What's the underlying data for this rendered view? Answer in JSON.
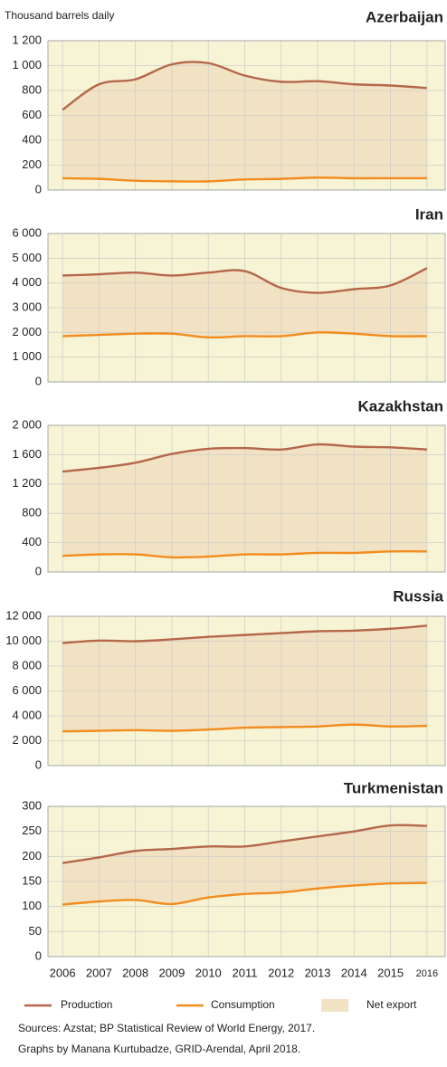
{
  "ylabel": "Thousand barrels daily",
  "legend": [
    {
      "name": "Production",
      "color": "#b5674a"
    },
    {
      "name": "Consumption",
      "color": "#f28c1e"
    },
    {
      "name": "Net export",
      "color": "#f2e2c4"
    }
  ],
  "sources": [
    "Sources: Azstat; BP Statistical Review of World Energy, 2017.",
    "Graphs by Manana Kurtubadze, GRID-Arendal, April 2018."
  ],
  "chart_data": [
    {
      "type": "line",
      "title": "Azerbaijan",
      "x": [
        2006,
        2007,
        2008,
        2009,
        2010,
        2011,
        2012,
        2013,
        2014,
        2015,
        2016
      ],
      "xlim": [
        2005.6,
        2016.5
      ],
      "ylim": [
        0,
        1200
      ],
      "yticks": [
        0,
        200,
        400,
        600,
        800,
        {
          "value": 1000,
          "label": "1 000"
        },
        {
          "value": 1200,
          "label": "1 200"
        }
      ],
      "grid": true,
      "series": [
        {
          "color": "#b5674a",
          "values": [
            645,
            850,
            890,
            1010,
            1020,
            920,
            870,
            875,
            850,
            840,
            820
          ]
        },
        {
          "color": "#f28c1e",
          "values": [
            95,
            90,
            75,
            70,
            70,
            85,
            90,
            100,
            95,
            95,
            95
          ]
        }
      ]
    },
    {
      "type": "line",
      "title": "Iran",
      "x": [
        2006,
        2007,
        2008,
        2009,
        2010,
        2011,
        2012,
        2013,
        2014,
        2015,
        2016
      ],
      "xlim": [
        2005.6,
        2016.5
      ],
      "ylim": [
        0,
        6000
      ],
      "yticks": [
        0,
        {
          "value": 1000,
          "label": "1 000"
        },
        {
          "value": 2000,
          "label": "2 000"
        },
        {
          "value": 3000,
          "label": "3 000"
        },
        {
          "value": 4000,
          "label": "4 000"
        },
        {
          "value": 5000,
          "label": "5 000"
        },
        {
          "value": 6000,
          "label": "6 000"
        }
      ],
      "grid": true,
      "series": [
        {
          "color": "#b5674a",
          "values": [
            4300,
            4350,
            4420,
            4300,
            4420,
            4480,
            3800,
            3600,
            3750,
            3900,
            4600
          ]
        },
        {
          "color": "#f28c1e",
          "values": [
            1850,
            1900,
            1950,
            1950,
            1800,
            1850,
            1850,
            2000,
            1950,
            1850,
            1850
          ]
        }
      ]
    },
    {
      "type": "line",
      "title": "Kazakhstan",
      "x": [
        2006,
        2007,
        2008,
        2009,
        2010,
        2011,
        2012,
        2013,
        2014,
        2015,
        2016
      ],
      "xlim": [
        2005.6,
        2016.5
      ],
      "ylim": [
        0,
        2000
      ],
      "yticks": [
        0,
        400,
        800,
        {
          "value": 1200,
          "label": "1 200"
        },
        {
          "value": 1600,
          "label": "1 600"
        },
        {
          "value": 2000,
          "label": "2 000"
        }
      ],
      "grid": true,
      "series": [
        {
          "color": "#b5674a",
          "values": [
            1370,
            1420,
            1490,
            1610,
            1680,
            1690,
            1670,
            1740,
            1710,
            1700,
            1670
          ]
        },
        {
          "color": "#f28c1e",
          "values": [
            220,
            240,
            240,
            200,
            210,
            240,
            240,
            260,
            260,
            280,
            280
          ]
        }
      ]
    },
    {
      "type": "line",
      "title": "Russia",
      "x": [
        2006,
        2007,
        2008,
        2009,
        2010,
        2011,
        2012,
        2013,
        2014,
        2015,
        2016
      ],
      "xlim": [
        2005.6,
        2016.5
      ],
      "ylim": [
        0,
        12000
      ],
      "yticks": [
        0,
        {
          "value": 2000,
          "label": "2 000"
        },
        {
          "value": 4000,
          "label": "4 000"
        },
        {
          "value": 6000,
          "label": "6 000"
        },
        {
          "value": 8000,
          "label": "8 000"
        },
        {
          "value": 10000,
          "label": "10 000"
        },
        {
          "value": 12000,
          "label": "12 000"
        }
      ],
      "grid": true,
      "series": [
        {
          "color": "#b5674a",
          "values": [
            9850,
            10050,
            10000,
            10150,
            10350,
            10500,
            10650,
            10800,
            10850,
            11000,
            11250
          ]
        },
        {
          "color": "#f28c1e",
          "values": [
            2750,
            2800,
            2850,
            2800,
            2900,
            3050,
            3100,
            3150,
            3300,
            3150,
            3200
          ]
        }
      ]
    },
    {
      "type": "line",
      "title": "Turkmenistan",
      "x": [
        2006,
        2007,
        2008,
        2009,
        2010,
        2011,
        2012,
        2013,
        2014,
        2015,
        2016
      ],
      "xlim": [
        2005.6,
        2016.5
      ],
      "ylim": [
        0,
        300
      ],
      "xticks": [
        2006,
        2007,
        2008,
        2009,
        2010,
        2011,
        2012,
        2013,
        2014,
        2015,
        2016
      ],
      "yticks": [
        0,
        50,
        100,
        150,
        200,
        250,
        300
      ],
      "grid": true,
      "series": [
        {
          "color": "#b5674a",
          "values": [
            187,
            198,
            211,
            215,
            220,
            220,
            230,
            240,
            250,
            262,
            261
          ]
        },
        {
          "color": "#f28c1e",
          "values": [
            104,
            110,
            113,
            105,
            118,
            125,
            128,
            136,
            142,
            146,
            147
          ]
        }
      ]
    }
  ]
}
